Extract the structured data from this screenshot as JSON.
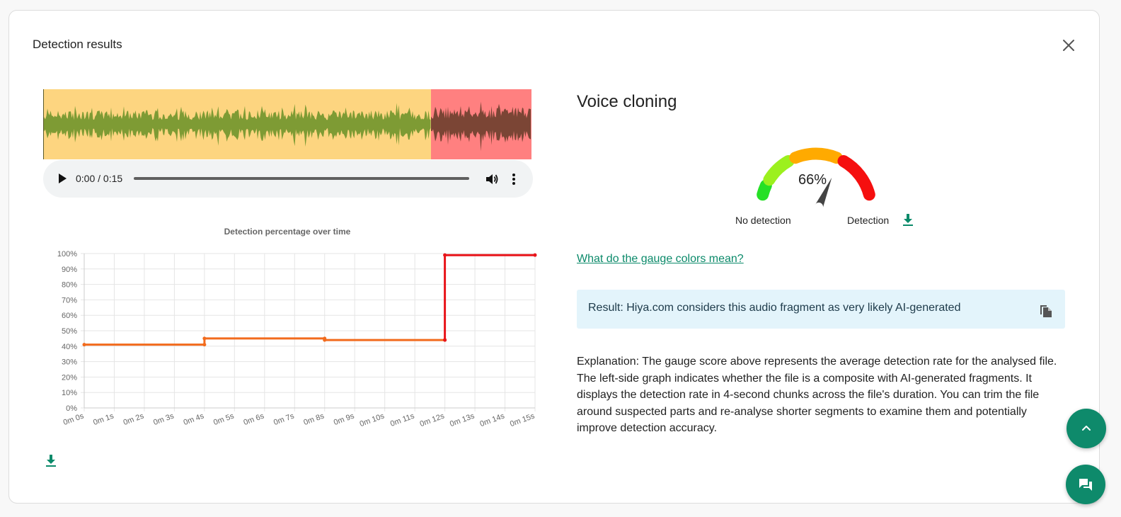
{
  "dialog": {
    "title": "Detection results"
  },
  "player": {
    "time": "0:00 / 0:15",
    "progress": 0
  },
  "waveform": {
    "colors": {
      "uncertain_bg": "#fdd580",
      "detected_bg": "#ff8080",
      "uncertain_wave": "#7e9b34",
      "detected_wave": "#7b4535"
    },
    "detected_from_seconds": 12,
    "duration_seconds": 15
  },
  "chart_data": {
    "type": "line",
    "title": "Detection percentage over time",
    "x_tick_labels": [
      "0m 0s",
      "0m 1s",
      "0m 2s",
      "0m 3s",
      "0m 4s",
      "0m 5s",
      "0m 6s",
      "0m 7s",
      "0m 8s",
      "0m 9s",
      "0m 10s",
      "0m 11s",
      "0m 12s",
      "0m 13s",
      "0m 14s",
      "0m 15s"
    ],
    "y_tick_labels": [
      "100%",
      "90%",
      "80%",
      "70%",
      "60%",
      "50%",
      "40%",
      "30%",
      "20%",
      "10%",
      "0%"
    ],
    "xlim": [
      0,
      15
    ],
    "ylim": [
      0,
      100
    ],
    "grid": true,
    "series": [
      {
        "color": "#f26b1d",
        "points": [
          [
            0,
            41
          ],
          [
            4,
            41
          ],
          [
            4,
            45
          ],
          [
            8,
            45
          ],
          [
            8,
            44
          ],
          [
            12,
            44
          ]
        ]
      },
      {
        "color": "#e8141a",
        "points": [
          [
            12,
            44
          ],
          [
            12,
            99
          ],
          [
            15,
            99
          ]
        ]
      }
    ]
  },
  "right": {
    "heading": "Voice cloning",
    "gauge": {
      "value_label": "66%",
      "value": 66,
      "segments": [
        "#26e026",
        "#9cf01e",
        "#ffaa00",
        "#f50f0f"
      ],
      "needle_color": "#444444",
      "left_label": "No detection",
      "right_label": "Detection"
    },
    "gauge_link": "What do the gauge colors mean?",
    "result": "Result: Hiya.com considers this audio fragment as very likely AI-generated",
    "explanation_lines": [
      "Explanation: The gauge score above represents the average detection rate for the analysed file.",
      "The left-side graph indicates whether the file is a composite with AI-generated fragments. It",
      "displays the detection rate in 4-second chunks across the file's duration. You can trim the file",
      "around suspected parts and re-analyse shorter segments to examine them and potentially",
      "improve detection accuracy."
    ]
  },
  "theme": {
    "accent": "#0e8a6b",
    "download_icon_color": "#0b8a6a"
  }
}
